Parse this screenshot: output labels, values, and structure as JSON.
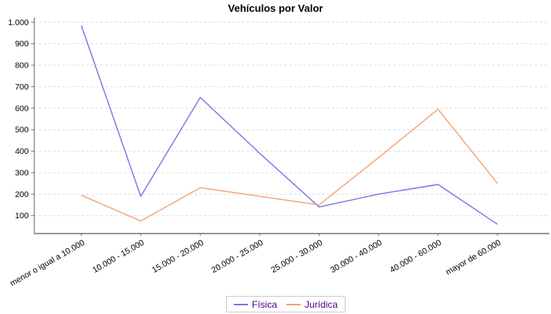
{
  "chart_data": {
    "type": "line",
    "title": "Vehículos por Valor",
    "categories": [
      "menor o igual a 10.000",
      "10.000 - 15.000",
      "15.000 - 20.000",
      "20.000 - 25.000",
      "25.000 - 30.000",
      "30.000 - 40.000",
      "40.000 - 60.000",
      "mayor de 60.000"
    ],
    "series": [
      {
        "name": "Física",
        "color": "#7878e2",
        "values": [
          985,
          190,
          650,
          390,
          140,
          200,
          245,
          60
        ]
      },
      {
        "name": "Jurídica",
        "color": "#f5a26e",
        "values": [
          195,
          75,
          230,
          190,
          150,
          370,
          595,
          250
        ]
      }
    ],
    "yticks": [
      100,
      200,
      300,
      400,
      500,
      600,
      700,
      800,
      900,
      1000
    ],
    "ytick_labels": [
      "100",
      "200",
      "300",
      "400",
      "500",
      "600",
      "700",
      "800",
      "900",
      "1.000"
    ],
    "ylim": [
      19,
      1023
    ],
    "grid": "horizontal-dashed",
    "legend_position": "bottom",
    "colors": {
      "grid_line": "#d9d9d9",
      "axis_line": "#737373",
      "tick_text": "#000000",
      "legend_text": "#4b0082",
      "legend_border": "#cccccc",
      "background": "#ffffff"
    }
  }
}
